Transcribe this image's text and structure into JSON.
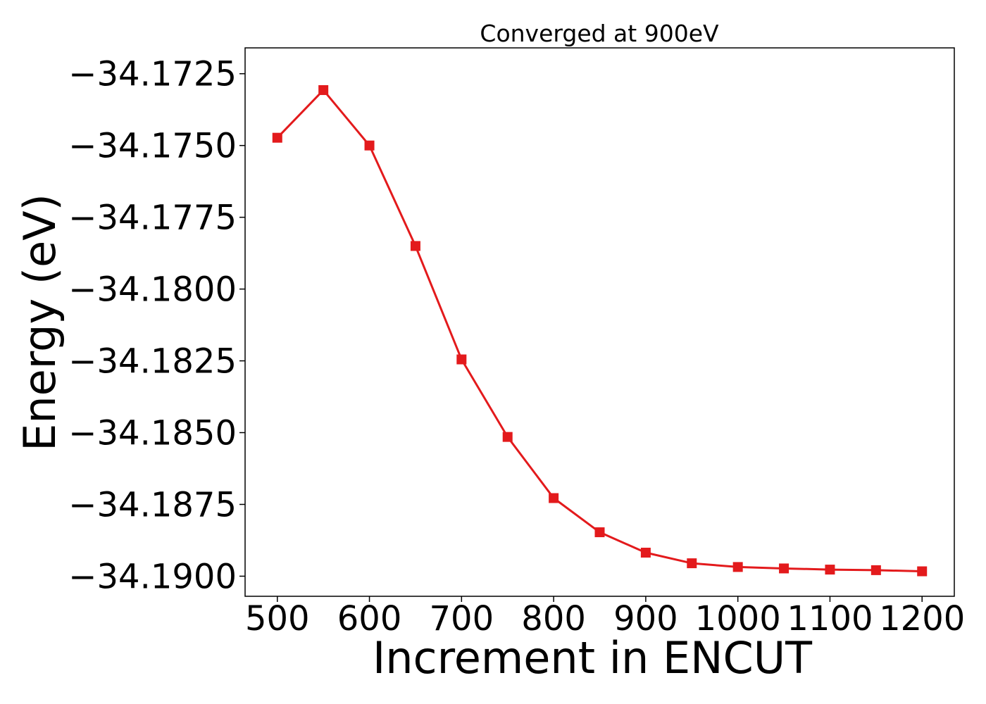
{
  "chart_data": {
    "type": "line",
    "title": "Converged at 900eV",
    "xlabel": "Increment in ENCUT",
    "ylabel": "Energy (eV)",
    "xlim": [
      465,
      1235
    ],
    "ylim": [
      -34.1907,
      -34.1716
    ],
    "x_ticks": [
      500,
      600,
      700,
      800,
      900,
      1000,
      1100,
      1200
    ],
    "y_ticks": [
      -34.1725,
      -34.175,
      -34.1775,
      -34.18,
      -34.1825,
      -34.185,
      -34.1875,
      -34.19
    ],
    "y_tick_labels": [
      "−34.1725",
      "−34.1750",
      "−34.1775",
      "−34.1800",
      "−34.1825",
      "−34.1850",
      "−34.1875",
      "−34.1900"
    ],
    "grid": false,
    "legend": null,
    "series": [
      {
        "color": "#e31a1c",
        "marker": "square",
        "x": [
          500,
          550,
          600,
          650,
          700,
          750,
          800,
          850,
          900,
          950,
          1000,
          1050,
          1100,
          1150,
          1200
        ],
        "y": [
          -34.17473,
          -34.17307,
          -34.175,
          -34.1785,
          -34.18245,
          -34.18515,
          -34.18728,
          -34.18847,
          -34.18918,
          -34.18955,
          -34.18968,
          -34.18973,
          -34.18977,
          -34.18979,
          -34.18983
        ]
      }
    ]
  }
}
